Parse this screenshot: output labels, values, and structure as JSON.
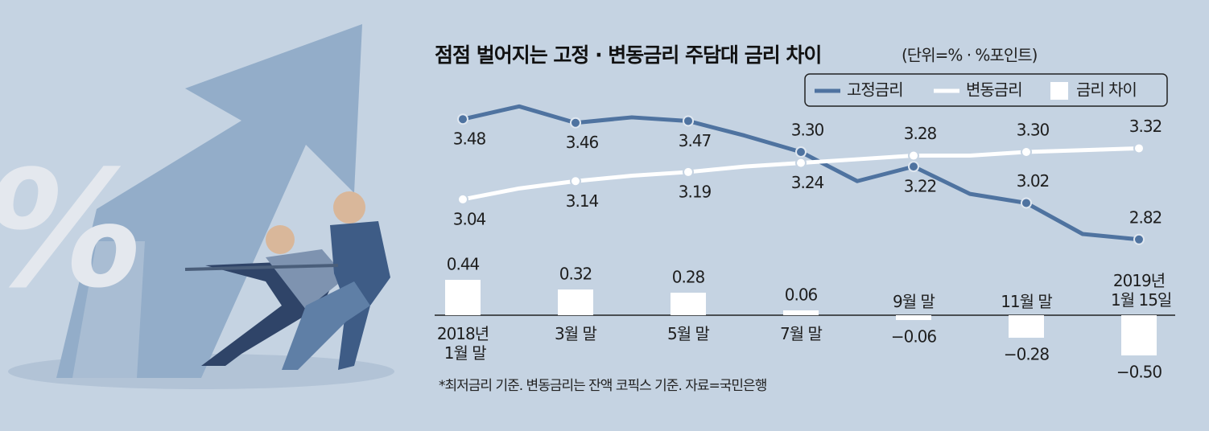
{
  "chart_data": {
    "type": "line-bar",
    "title": "점점 벌어지는 고정 · 변동금리 주담대 금리 차이",
    "subtitle": "(단위=% · %포인트)",
    "categories": [
      "2018년 1월 말",
      null,
      "3월 말",
      null,
      "5월 말",
      null,
      "7월 말",
      null,
      "9월 말",
      null,
      "11월 말",
      null,
      "2019년 1월 15일"
    ],
    "series": [
      {
        "name": "고정금리",
        "color": "#4f73a0",
        "values": [
          3.48,
          3.55,
          3.46,
          3.49,
          3.47,
          3.39,
          3.3,
          3.14,
          3.22,
          3.07,
          3.02,
          2.85,
          2.82
        ],
        "value_labels": [
          "3.48",
          null,
          "3.46",
          null,
          "3.47",
          null,
          "3.30",
          null,
          "3.22",
          null,
          "3.02",
          null,
          "2.82"
        ]
      },
      {
        "name": "변동금리",
        "color": "#ffffff",
        "values": [
          3.04,
          3.1,
          3.14,
          3.17,
          3.19,
          3.22,
          3.24,
          3.26,
          3.28,
          3.28,
          3.3,
          3.31,
          3.32
        ],
        "value_labels": [
          "3.04",
          null,
          "3.14",
          null,
          "3.19",
          null,
          "3.24",
          null,
          "3.28",
          null,
          "3.30",
          null,
          "3.32"
        ]
      },
      {
        "name": "금리 차이",
        "color": "#ffffff",
        "axis": "y2",
        "values": [
          0.44,
          null,
          0.32,
          null,
          0.28,
          null,
          0.06,
          null,
          -0.06,
          null,
          -0.28,
          null,
          -0.5
        ],
        "value_labels": [
          "0.44",
          null,
          "0.32",
          null,
          "0.28",
          null,
          "0.06",
          null,
          "−0.06",
          null,
          "−0.28",
          null,
          "−0.50"
        ]
      }
    ],
    "ylim": [
      2.7,
      3.6
    ],
    "y2lim": [
      -0.6,
      0.6
    ],
    "note": "*최저금리 기준. 변동금리는 잔액 코픽스 기준. 자료=국민은행"
  }
}
